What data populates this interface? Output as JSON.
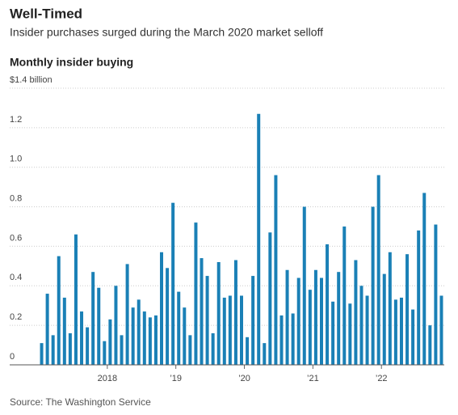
{
  "chart_data": {
    "type": "bar",
    "title": "Well-Timed",
    "subtitle": "Insider purchases surged during the March 2020 market selloff",
    "axis_title": "Monthly insider buying",
    "source": "Source: The Washington Service",
    "categories": [
      null,
      null,
      null,
      null,
      null,
      null,
      null,
      null,
      null,
      null,
      null,
      null,
      "2018",
      null,
      null,
      null,
      null,
      null,
      null,
      null,
      null,
      null,
      null,
      null,
      "’19",
      null,
      null,
      null,
      null,
      null,
      null,
      null,
      null,
      null,
      null,
      null,
      "’20",
      null,
      null,
      null,
      null,
      null,
      null,
      null,
      null,
      null,
      null,
      null,
      "’21",
      null,
      null,
      null,
      null,
      null,
      null,
      null,
      null,
      null,
      null,
      null,
      "’22",
      null,
      null,
      null,
      null,
      null,
      null,
      null,
      null,
      null,
      null
    ],
    "values": [
      0.11,
      0.36,
      0.15,
      0.55,
      0.34,
      0.16,
      0.66,
      0.27,
      0.19,
      0.47,
      0.39,
      0.12,
      0.23,
      0.4,
      0.15,
      0.51,
      0.29,
      0.33,
      0.27,
      0.24,
      0.25,
      0.57,
      0.49,
      0.82,
      0.37,
      0.29,
      0.15,
      0.72,
      0.54,
      0.45,
      0.16,
      0.52,
      0.34,
      0.35,
      0.53,
      0.35,
      0.14,
      0.45,
      1.27,
      0.11,
      0.67,
      0.96,
      0.25,
      0.48,
      0.26,
      0.44,
      0.8,
      0.38,
      0.48,
      0.44,
      0.61,
      0.32,
      0.47,
      0.7,
      0.31,
      0.53,
      0.4,
      0.35,
      0.8,
      0.96,
      0.46,
      0.57,
      0.33,
      0.34,
      0.56,
      0.28,
      0.68,
      0.87,
      0.2,
      0.71,
      0.35
    ],
    "color": "#1a80b6",
    "ylim": [
      0,
      1.4
    ],
    "yticks": [
      0,
      0.2,
      0.4,
      0.6,
      0.8,
      {
        "value": 1,
        "label": "1.0"
      },
      1.2,
      {
        "value": 1.4,
        "label": "$1.4 billion"
      }
    ],
    "grid": true
  }
}
